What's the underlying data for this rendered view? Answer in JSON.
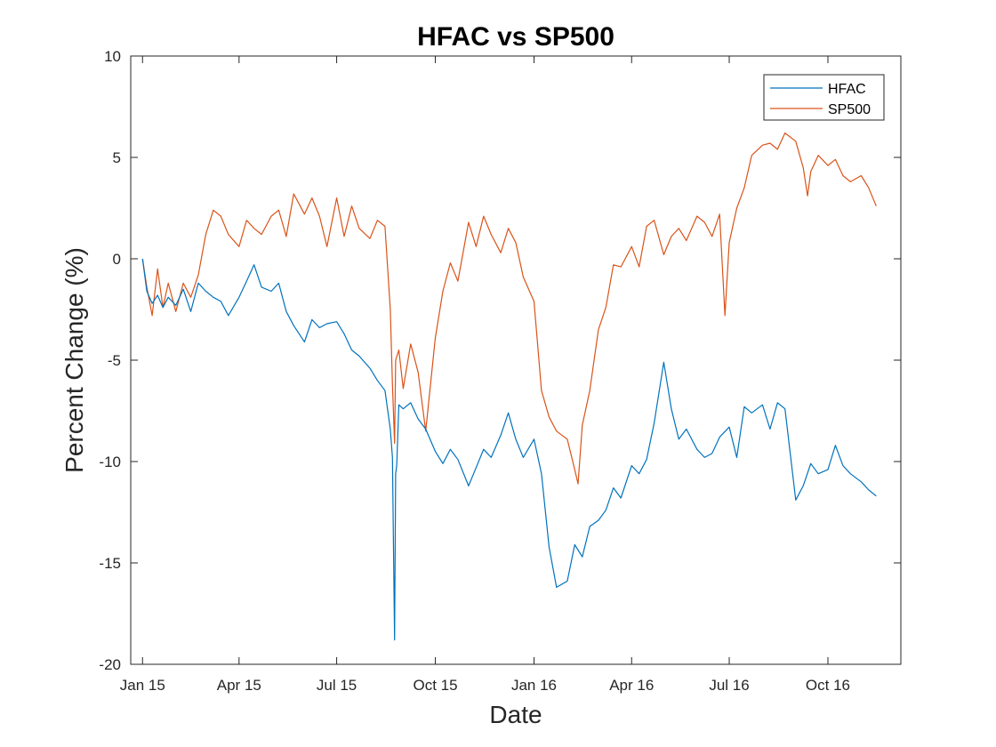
{
  "chart_data": {
    "type": "line",
    "title": "HFAC vs SP500",
    "xlabel": "Date",
    "ylabel": "Percent Change (%)",
    "xlim": [
      "2014-12-21",
      "2016-12-08"
    ],
    "ylim": [
      -20,
      10
    ],
    "x_ticks": [
      {
        "date": "2015-01-01",
        "label": "Jan 15"
      },
      {
        "date": "2015-04-01",
        "label": "Apr 15"
      },
      {
        "date": "2015-07-01",
        "label": "Jul 15"
      },
      {
        "date": "2015-10-01",
        "label": "Oct 15"
      },
      {
        "date": "2016-01-01",
        "label": "Jan 16"
      },
      {
        "date": "2016-04-01",
        "label": "Apr 16"
      },
      {
        "date": "2016-07-01",
        "label": "Jul 16"
      },
      {
        "date": "2016-10-01",
        "label": "Oct 16"
      }
    ],
    "y_ticks": [
      {
        "value": 10,
        "label": "10"
      },
      {
        "value": 5,
        "label": "5"
      },
      {
        "value": 0,
        "label": "0"
      },
      {
        "value": -5,
        "label": "-5"
      },
      {
        "value": -10,
        "label": "-10"
      },
      {
        "value": -15,
        "label": "-15"
      },
      {
        "value": -20,
        "label": "-20"
      }
    ],
    "grid": false,
    "legend_position": "top-right",
    "series": [
      {
        "name": "HFAC",
        "color": "#0072BD",
        "x": [
          "2015-01-01",
          "2015-01-05",
          "2015-01-10",
          "2015-01-15",
          "2015-01-20",
          "2015-01-25",
          "2015-02-01",
          "2015-02-08",
          "2015-02-15",
          "2015-02-22",
          "2015-03-01",
          "2015-03-08",
          "2015-03-15",
          "2015-03-22",
          "2015-04-01",
          "2015-04-08",
          "2015-04-15",
          "2015-04-22",
          "2015-05-01",
          "2015-05-08",
          "2015-05-15",
          "2015-05-22",
          "2015-06-01",
          "2015-06-08",
          "2015-06-15",
          "2015-06-22",
          "2015-07-01",
          "2015-07-08",
          "2015-07-15",
          "2015-07-22",
          "2015-08-01",
          "2015-08-08",
          "2015-08-15",
          "2015-08-20",
          "2015-08-22",
          "2015-08-24",
          "2015-08-25",
          "2015-08-26",
          "2015-08-28",
          "2015-09-01",
          "2015-09-08",
          "2015-09-15",
          "2015-09-22",
          "2015-10-01",
          "2015-10-08",
          "2015-10-15",
          "2015-10-22",
          "2015-11-01",
          "2015-11-08",
          "2015-11-15",
          "2015-11-22",
          "2015-12-01",
          "2015-12-08",
          "2015-12-15",
          "2015-12-22",
          "2016-01-01",
          "2016-01-08",
          "2016-01-15",
          "2016-01-22",
          "2016-02-01",
          "2016-02-08",
          "2016-02-15",
          "2016-02-22",
          "2016-03-01",
          "2016-03-08",
          "2016-03-15",
          "2016-03-22",
          "2016-04-01",
          "2016-04-08",
          "2016-04-15",
          "2016-04-22",
          "2016-05-01",
          "2016-05-08",
          "2016-05-15",
          "2016-05-22",
          "2016-06-01",
          "2016-06-08",
          "2016-06-15",
          "2016-06-22",
          "2016-07-01",
          "2016-07-08",
          "2016-07-15",
          "2016-07-22",
          "2016-08-01",
          "2016-08-08",
          "2016-08-15",
          "2016-08-22",
          "2016-09-01",
          "2016-09-08",
          "2016-09-15",
          "2016-09-22",
          "2016-10-01",
          "2016-10-08",
          "2016-10-15",
          "2016-10-22",
          "2016-11-01",
          "2016-11-08",
          "2016-11-15"
        ],
        "values": [
          0,
          -1.6,
          -2.2,
          -1.8,
          -2.4,
          -1.9,
          -2.3,
          -1.5,
          -2.6,
          -1.2,
          -1.6,
          -1.9,
          -2.1,
          -2.8,
          -1.9,
          -1.1,
          -0.3,
          -1.4,
          -1.6,
          -1.2,
          -2.6,
          -3.3,
          -4.1,
          -3.0,
          -3.4,
          -3.2,
          -3.1,
          -3.7,
          -4.5,
          -4.8,
          -5.4,
          -6.0,
          -6.5,
          -8.4,
          -9.8,
          -18.8,
          -10.6,
          -10.2,
          -7.2,
          -7.4,
          -7.1,
          -7.9,
          -8.4,
          -9.5,
          -10.1,
          -9.4,
          -9.9,
          -11.2,
          -10.3,
          -9.4,
          -9.8,
          -8.7,
          -7.6,
          -8.9,
          -9.8,
          -8.9,
          -10.6,
          -14.2,
          -16.2,
          -15.9,
          -14.1,
          -14.7,
          -13.2,
          -12.9,
          -12.4,
          -11.3,
          -11.8,
          -10.2,
          -10.6,
          -9.9,
          -8.1,
          -5.1,
          -7.4,
          -8.9,
          -8.4,
          -9.4,
          -9.8,
          -9.6,
          -8.8,
          -8.3,
          -9.8,
          -7.3,
          -7.6,
          -7.2,
          -8.4,
          -7.1,
          -7.4,
          -11.9,
          -11.2,
          -10.1,
          -10.6,
          -10.4,
          -9.2,
          -10.2,
          -10.6,
          -11.0,
          -11.4,
          -11.7
        ]
      },
      {
        "name": "SP500",
        "color": "#D95319",
        "x": [
          "2015-01-01",
          "2015-01-05",
          "2015-01-10",
          "2015-01-15",
          "2015-01-20",
          "2015-01-25",
          "2015-02-01",
          "2015-02-08",
          "2015-02-15",
          "2015-02-22",
          "2015-03-01",
          "2015-03-08",
          "2015-03-15",
          "2015-03-22",
          "2015-04-01",
          "2015-04-08",
          "2015-04-15",
          "2015-04-22",
          "2015-05-01",
          "2015-05-08",
          "2015-05-15",
          "2015-05-22",
          "2015-06-01",
          "2015-06-08",
          "2015-06-15",
          "2015-06-22",
          "2015-07-01",
          "2015-07-08",
          "2015-07-15",
          "2015-07-22",
          "2015-08-01",
          "2015-08-08",
          "2015-08-15",
          "2015-08-20",
          "2015-08-22",
          "2015-08-24",
          "2015-08-25",
          "2015-08-28",
          "2015-09-01",
          "2015-09-08",
          "2015-09-15",
          "2015-09-22",
          "2015-10-01",
          "2015-10-08",
          "2015-10-15",
          "2015-10-22",
          "2015-11-01",
          "2015-11-08",
          "2015-11-15",
          "2015-11-22",
          "2015-12-01",
          "2015-12-08",
          "2015-12-15",
          "2015-12-22",
          "2016-01-01",
          "2016-01-08",
          "2016-01-15",
          "2016-01-22",
          "2016-02-01",
          "2016-02-08",
          "2016-02-11",
          "2016-02-15",
          "2016-02-22",
          "2016-03-01",
          "2016-03-08",
          "2016-03-15",
          "2016-03-22",
          "2016-04-01",
          "2016-04-08",
          "2016-04-15",
          "2016-04-22",
          "2016-05-01",
          "2016-05-08",
          "2016-05-15",
          "2016-05-22",
          "2016-06-01",
          "2016-06-08",
          "2016-06-15",
          "2016-06-22",
          "2016-06-27",
          "2016-07-01",
          "2016-07-08",
          "2016-07-15",
          "2016-07-22",
          "2016-08-01",
          "2016-08-08",
          "2016-08-15",
          "2016-08-22",
          "2016-09-01",
          "2016-09-08",
          "2016-09-12",
          "2016-09-15",
          "2016-09-22",
          "2016-10-01",
          "2016-10-08",
          "2016-10-15",
          "2016-10-22",
          "2016-11-01",
          "2016-11-08",
          "2016-11-15"
        ],
        "values": [
          0,
          -1.4,
          -2.8,
          -0.5,
          -2.4,
          -1.2,
          -2.6,
          -1.2,
          -1.9,
          -0.8,
          1.2,
          2.4,
          2.1,
          1.2,
          0.6,
          1.9,
          1.5,
          1.2,
          2.1,
          2.4,
          1.1,
          3.2,
          2.2,
          3.0,
          2.1,
          0.6,
          3.0,
          1.1,
          2.6,
          1.5,
          1.0,
          1.9,
          1.6,
          -2.5,
          -6.2,
          -9.1,
          -5.0,
          -4.5,
          -6.4,
          -4.2,
          -5.6,
          -8.5,
          -3.9,
          -1.6,
          -0.2,
          -1.1,
          1.8,
          0.6,
          2.1,
          1.2,
          0.3,
          1.5,
          0.8,
          -0.9,
          -2.1,
          -6.5,
          -7.8,
          -8.5,
          -8.9,
          -10.4,
          -11.1,
          -8.2,
          -6.5,
          -3.5,
          -2.4,
          -0.3,
          -0.4,
          0.6,
          -0.4,
          1.6,
          1.9,
          0.2,
          1.1,
          1.5,
          0.9,
          2.1,
          1.8,
          1.1,
          2.2,
          -2.8,
          0.8,
          2.5,
          3.5,
          5.1,
          5.6,
          5.7,
          5.4,
          6.2,
          5.8,
          4.5,
          3.1,
          4.3,
          5.1,
          4.6,
          4.9,
          4.1,
          3.8,
          4.1,
          3.5,
          2.6
        ]
      }
    ]
  }
}
